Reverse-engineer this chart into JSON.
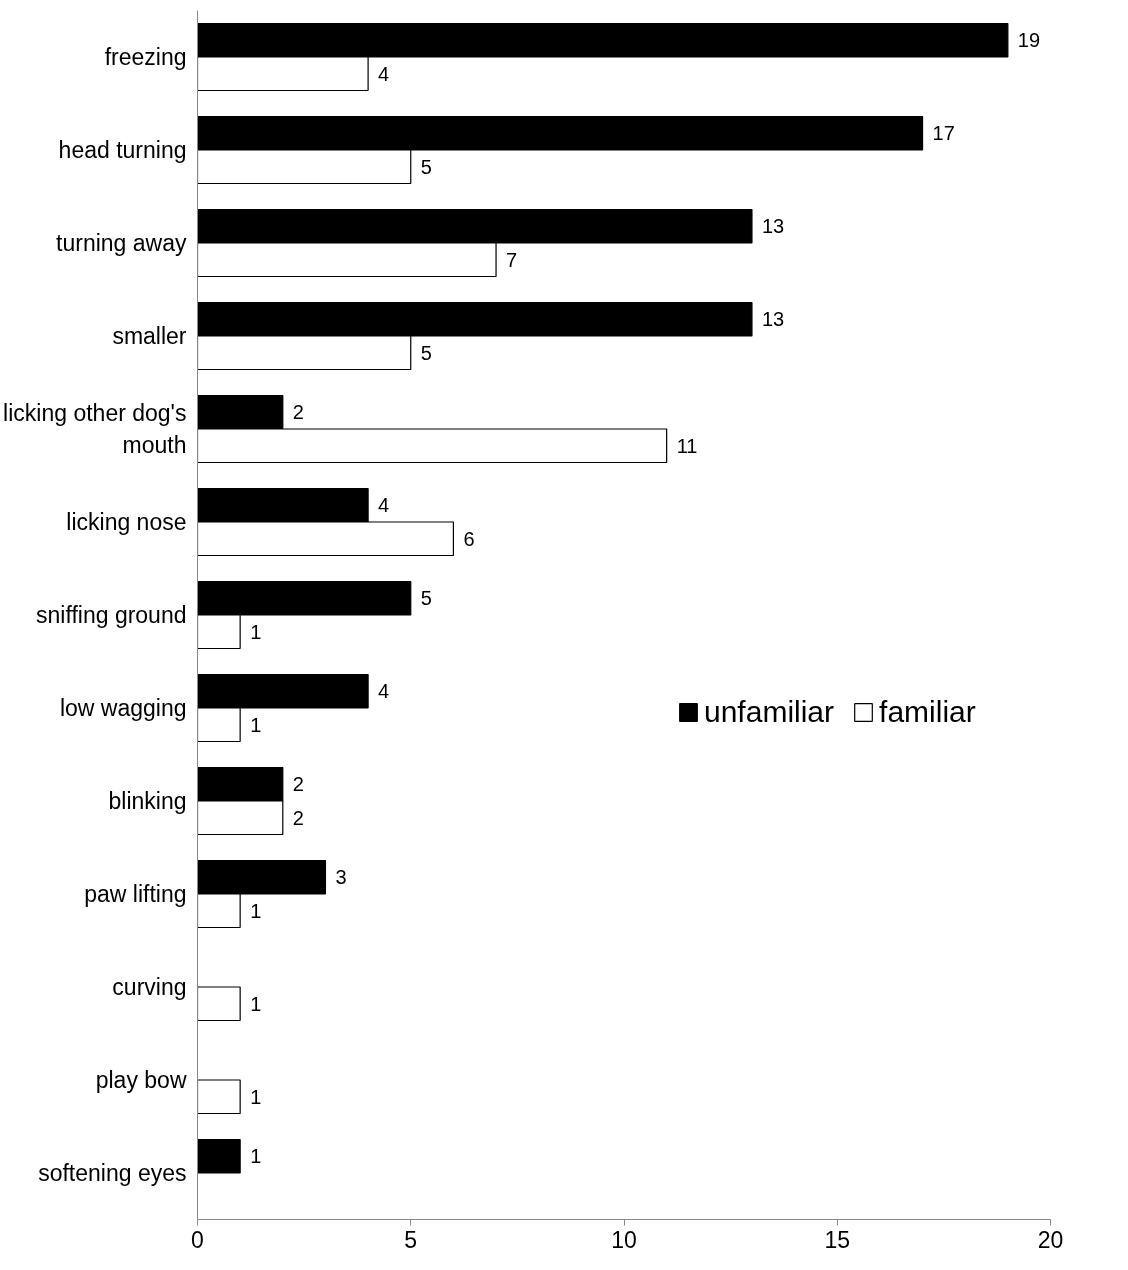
{
  "chart_data": {
    "type": "bar",
    "orientation": "horizontal",
    "categories": [
      "freezing",
      "head turning",
      "turning away",
      "smaller",
      "licking other dog's mouth",
      "licking nose",
      "sniffing ground",
      "low wagging",
      "blinking",
      "paw lifting",
      "curving",
      "play bow",
      "softening eyes"
    ],
    "series": [
      {
        "name": "unfamiliar",
        "color": "#000000",
        "values": [
          19,
          17,
          13,
          13,
          2,
          4,
          5,
          4,
          2,
          3,
          null,
          null,
          1
        ]
      },
      {
        "name": "familiar",
        "color": "#ffffff",
        "values": [
          4,
          5,
          7,
          5,
          11,
          6,
          1,
          1,
          2,
          1,
          1,
          1,
          null
        ]
      }
    ],
    "xlim": [
      0,
      20
    ],
    "xticks": [
      0,
      5,
      10,
      15,
      20
    ],
    "grid": false,
    "legend": "right",
    "data_labels": true
  }
}
